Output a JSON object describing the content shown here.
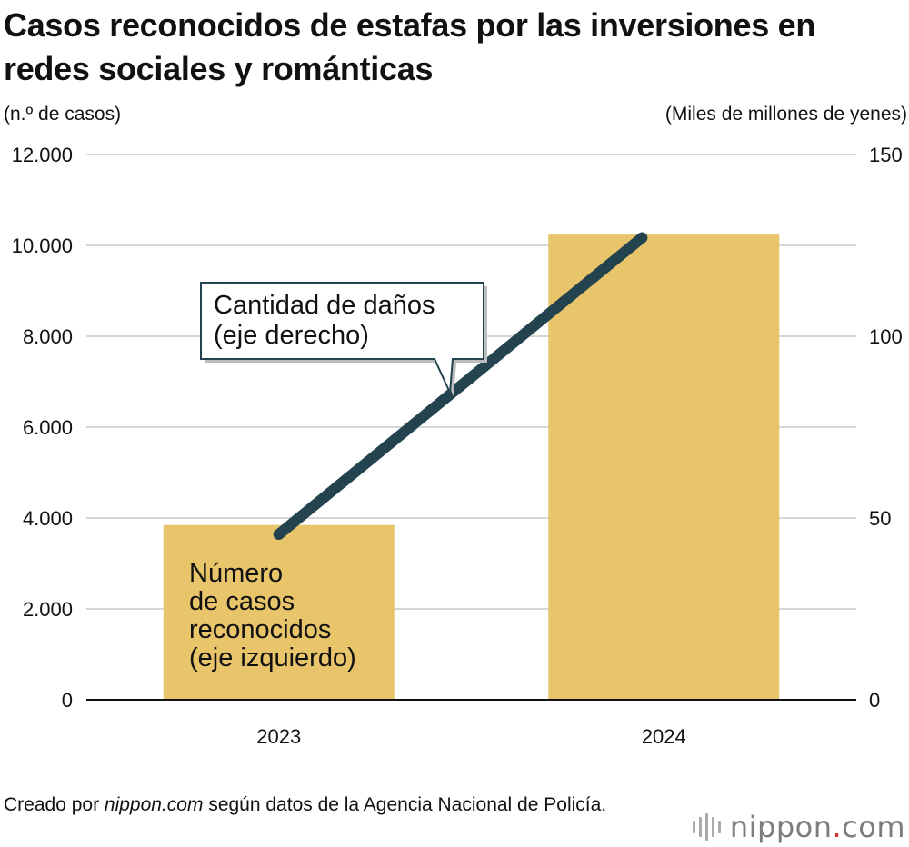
{
  "title": "Casos reconocidos de estafas por las inversiones en redes sociales y románticas",
  "left_axis_unit": "(n.º de casos)",
  "right_axis_unit": "(Miles de millones de yenes)",
  "source": {
    "prefix": "Creado por ",
    "site": "nippon.com",
    "suffix": " según datos de la Agencia Nacional de Policía."
  },
  "logo": {
    "name": "nippon",
    "dot": ".",
    "tld": "com",
    "icon": "nippon-waveform-logo-icon"
  },
  "colors": {
    "bar": "#e8c46a",
    "line": "#23434f",
    "grid": "#c8c8c8",
    "axis": "#111111",
    "logo_gray": "#7d7d7d",
    "logo_red": "#d3342e"
  },
  "chart_data": {
    "type": "bar+line",
    "categories": [
      "2023",
      "2024"
    ],
    "series": [
      {
        "name": "Número de casos reconocidos (eje izquierdo)",
        "type": "bar",
        "axis": "left",
        "values": [
          3846,
          10237
        ]
      },
      {
        "name": "Cantidad de daños (eje derecho)",
        "type": "line",
        "axis": "right",
        "values": [
          45.5,
          127.1
        ]
      }
    ],
    "y_left": {
      "range": [
        0,
        12000
      ],
      "ticks": [
        0,
        2000,
        4000,
        6000,
        8000,
        10000,
        12000
      ],
      "tick_labels": [
        "0",
        "2.000",
        "4.000",
        "6.000",
        "8.000",
        "10.000",
        "12.000"
      ]
    },
    "y_right": {
      "range": [
        0,
        150
      ],
      "ticks": [
        0,
        50,
        100,
        150
      ],
      "tick_labels": [
        "0",
        "50",
        "100",
        "150"
      ]
    },
    "grid": true,
    "annotations": {
      "bar_label": [
        "Número",
        "de casos",
        "reconocidos",
        "(eje izquierdo)"
      ],
      "line_callout": [
        "Cantidad de daños",
        "(eje derecho)"
      ]
    }
  }
}
